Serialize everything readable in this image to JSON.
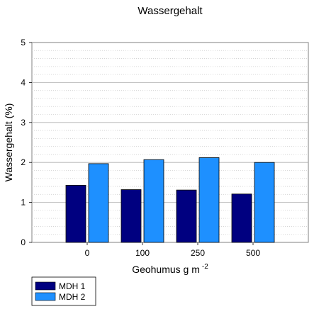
{
  "chart_data": {
    "type": "bar",
    "title": "Wassergehalt",
    "ylabel": "Wassergehalt (%)",
    "xlabel_main": "Geohumus g m",
    "xlabel_exponent": "-2",
    "categories": [
      "0",
      "100",
      "250",
      "500"
    ],
    "yticks": [
      "0",
      "1",
      "2",
      "3",
      "4",
      "5"
    ],
    "ylim": [
      0,
      5
    ],
    "grid": "dotted horizontal at 0.2 steps, solid at whole units",
    "legend_position": "bottom-left",
    "series": [
      {
        "name": "MDH 1",
        "color": "#000080",
        "values": [
          1.43,
          1.32,
          1.31,
          1.21
        ]
      },
      {
        "name": "MDH 2",
        "color": "#1E90FF",
        "values": [
          1.97,
          2.07,
          2.12,
          2.0
        ]
      }
    ]
  }
}
